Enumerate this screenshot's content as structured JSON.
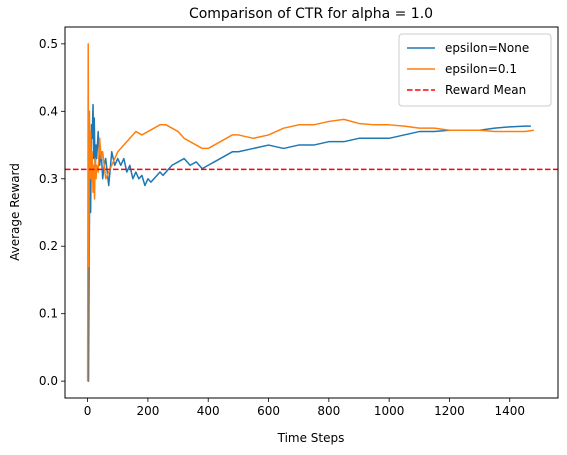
{
  "chart_data": {
    "type": "line",
    "title": "Comparison of CTR for alpha = 1.0",
    "xlabel": "Time Steps",
    "ylabel": "Average Reward",
    "xlim": [
      -75,
      1560
    ],
    "ylim": [
      -0.025,
      0.525
    ],
    "xticks": [
      0,
      200,
      400,
      600,
      800,
      1000,
      1200,
      1400
    ],
    "yticks": [
      0.0,
      0.1,
      0.2,
      0.3,
      0.4,
      0.5
    ],
    "grid": false,
    "legend_position": "top-right",
    "series": [
      {
        "name": "epsilon=None",
        "color": "#1f77b4",
        "style": "solid",
        "points": [
          [
            0,
            0.0
          ],
          [
            3,
            0.0
          ],
          [
            5,
            0.17
          ],
          [
            8,
            0.35
          ],
          [
            10,
            0.25
          ],
          [
            13,
            0.38
          ],
          [
            15,
            0.36
          ],
          [
            18,
            0.41
          ],
          [
            20,
            0.33
          ],
          [
            22,
            0.39
          ],
          [
            25,
            0.31
          ],
          [
            28,
            0.35
          ],
          [
            30,
            0.33
          ],
          [
            35,
            0.37
          ],
          [
            40,
            0.32
          ],
          [
            45,
            0.34
          ],
          [
            50,
            0.3
          ],
          [
            55,
            0.32
          ],
          [
            60,
            0.33
          ],
          [
            70,
            0.29
          ],
          [
            80,
            0.34
          ],
          [
            90,
            0.32
          ],
          [
            100,
            0.33
          ],
          [
            110,
            0.32
          ],
          [
            120,
            0.33
          ],
          [
            130,
            0.31
          ],
          [
            140,
            0.32
          ],
          [
            150,
            0.3
          ],
          [
            160,
            0.31
          ],
          [
            170,
            0.3
          ],
          [
            180,
            0.305
          ],
          [
            190,
            0.29
          ],
          [
            200,
            0.3
          ],
          [
            210,
            0.295
          ],
          [
            220,
            0.3
          ],
          [
            230,
            0.305
          ],
          [
            240,
            0.31
          ],
          [
            250,
            0.305
          ],
          [
            260,
            0.31
          ],
          [
            270,
            0.315
          ],
          [
            280,
            0.32
          ],
          [
            300,
            0.325
          ],
          [
            320,
            0.33
          ],
          [
            340,
            0.32
          ],
          [
            360,
            0.325
          ],
          [
            380,
            0.315
          ],
          [
            400,
            0.32
          ],
          [
            420,
            0.325
          ],
          [
            440,
            0.33
          ],
          [
            460,
            0.335
          ],
          [
            480,
            0.34
          ],
          [
            500,
            0.34
          ],
          [
            550,
            0.345
          ],
          [
            600,
            0.35
          ],
          [
            650,
            0.345
          ],
          [
            700,
            0.35
          ],
          [
            750,
            0.35
          ],
          [
            800,
            0.355
          ],
          [
            850,
            0.355
          ],
          [
            900,
            0.36
          ],
          [
            950,
            0.36
          ],
          [
            1000,
            0.36
          ],
          [
            1050,
            0.365
          ],
          [
            1100,
            0.37
          ],
          [
            1150,
            0.37
          ],
          [
            1200,
            0.372
          ],
          [
            1250,
            0.372
          ],
          [
            1300,
            0.372
          ],
          [
            1350,
            0.375
          ],
          [
            1400,
            0.377
          ],
          [
            1450,
            0.378
          ],
          [
            1470,
            0.378
          ]
        ]
      },
      {
        "name": "epsilon=0.1",
        "color": "#ff7f0e",
        "style": "solid",
        "points": [
          [
            0,
            0.0
          ],
          [
            2,
            0.5
          ],
          [
            4,
            0.17
          ],
          [
            6,
            0.4
          ],
          [
            8,
            0.3
          ],
          [
            10,
            0.37
          ],
          [
            13,
            0.3
          ],
          [
            15,
            0.34
          ],
          [
            18,
            0.28
          ],
          [
            20,
            0.32
          ],
          [
            23,
            0.27
          ],
          [
            25,
            0.33
          ],
          [
            28,
            0.3
          ],
          [
            30,
            0.32
          ],
          [
            35,
            0.31
          ],
          [
            40,
            0.36
          ],
          [
            45,
            0.33
          ],
          [
            50,
            0.34
          ],
          [
            55,
            0.32
          ],
          [
            60,
            0.3
          ],
          [
            70,
            0.31
          ],
          [
            80,
            0.32
          ],
          [
            90,
            0.33
          ],
          [
            100,
            0.34
          ],
          [
            120,
            0.35
          ],
          [
            140,
            0.36
          ],
          [
            160,
            0.37
          ],
          [
            180,
            0.365
          ],
          [
            200,
            0.37
          ],
          [
            220,
            0.375
          ],
          [
            240,
            0.38
          ],
          [
            260,
            0.38
          ],
          [
            280,
            0.375
          ],
          [
            300,
            0.37
          ],
          [
            320,
            0.36
          ],
          [
            340,
            0.355
          ],
          [
            360,
            0.35
          ],
          [
            380,
            0.345
          ],
          [
            400,
            0.345
          ],
          [
            420,
            0.35
          ],
          [
            440,
            0.355
          ],
          [
            460,
            0.36
          ],
          [
            480,
            0.365
          ],
          [
            500,
            0.365
          ],
          [
            550,
            0.36
          ],
          [
            600,
            0.365
          ],
          [
            650,
            0.375
          ],
          [
            700,
            0.38
          ],
          [
            750,
            0.38
          ],
          [
            800,
            0.385
          ],
          [
            850,
            0.388
          ],
          [
            900,
            0.382
          ],
          [
            950,
            0.38
          ],
          [
            1000,
            0.38
          ],
          [
            1050,
            0.378
          ],
          [
            1100,
            0.375
          ],
          [
            1150,
            0.375
          ],
          [
            1200,
            0.372
          ],
          [
            1250,
            0.372
          ],
          [
            1300,
            0.372
          ],
          [
            1350,
            0.37
          ],
          [
            1400,
            0.37
          ],
          [
            1450,
            0.37
          ],
          [
            1480,
            0.372
          ]
        ]
      },
      {
        "name": "Reward Mean",
        "color": "#ff0000",
        "style": "dashed",
        "hline": 0.314
      }
    ]
  }
}
